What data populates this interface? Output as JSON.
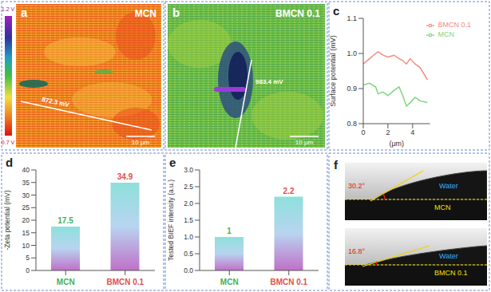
{
  "kpfm": {
    "colorbar": {
      "max_label": "1.2 V",
      "min_label": "0.7 V"
    },
    "images": [
      {
        "panel_label": "a",
        "title": "MCN",
        "profile_label": "872.3 mV",
        "scale_bar": "10 μm"
      },
      {
        "panel_label": "b",
        "title": "BMCN 0.1",
        "profile_label": "983.4 mV",
        "scale_bar": "10 μm"
      }
    ]
  },
  "chart_data": [
    {
      "panel_label": "c",
      "type": "line",
      "xlabel": "(μm)",
      "ylabel": "Surface potential (mV)",
      "x": [
        0,
        0.5,
        1,
        1.2,
        1.6,
        2,
        2.5,
        2.9,
        3.2,
        3.5,
        3.8,
        4.2,
        4.6,
        5.2
      ],
      "series": [
        {
          "name": "MCN",
          "color": "#7ed67e",
          "values": [
            0.91,
            0.915,
            0.905,
            0.885,
            0.89,
            0.88,
            0.895,
            0.905,
            0.88,
            0.85,
            0.86,
            0.875,
            0.865,
            0.86
          ]
        },
        {
          "name": "BMCN 0.1",
          "color": "#f28b82",
          "values": [
            0.97,
            0.985,
            1.0,
            1.005,
            0.995,
            0.99,
            0.995,
            0.985,
            0.98,
            0.97,
            0.985,
            0.97,
            0.96,
            0.925
          ]
        }
      ],
      "xlim": [
        0,
        5.4
      ],
      "xticks": [
        0,
        2,
        4
      ],
      "ylim": [
        0.8,
        1.1
      ],
      "yticks": [
        0.8,
        0.9,
        {
          "value": 1,
          "label": "1.0"
        },
        1.1
      ],
      "legend": "top right"
    },
    {
      "panel_label": "d",
      "type": "bar",
      "ylabel": "-Zeta potential (mV)",
      "categories": [
        "MCN",
        "BMCN 0.1"
      ],
      "values": [
        17.5,
        34.9
      ],
      "colors": [
        "#4caf50",
        "#e0504f"
      ],
      "ylim": [
        0,
        40
      ],
      "yticks": [
        0,
        5,
        10,
        15,
        20,
        25,
        30,
        35,
        40
      ],
      "data_labels": true
    },
    {
      "panel_label": "e",
      "type": "bar",
      "ylabel": "Tested BIEF intensity (a.u.)",
      "categories": [
        "MCN",
        "BMCN 0.1"
      ],
      "values": [
        1,
        2.2
      ],
      "colors": [
        "#4caf50",
        "#e0504f"
      ],
      "ylim": [
        0,
        3
      ],
      "yticks": [
        {
          "value": 0,
          "label": "0.0"
        },
        0.5,
        {
          "value": 1,
          "label": "1.0"
        },
        1.5,
        {
          "value": 2,
          "label": "2.0"
        },
        2.5,
        {
          "value": 3,
          "label": "3.0"
        }
      ],
      "data_labels": true
    }
  ],
  "contact_angle": {
    "panel_label": "f",
    "images": [
      {
        "angle": "30.2°",
        "liquid": "Water",
        "sample": "MCN"
      },
      {
        "angle": "16.8°",
        "liquid": "Water",
        "sample": "BMCN 0.1"
      }
    ]
  }
}
